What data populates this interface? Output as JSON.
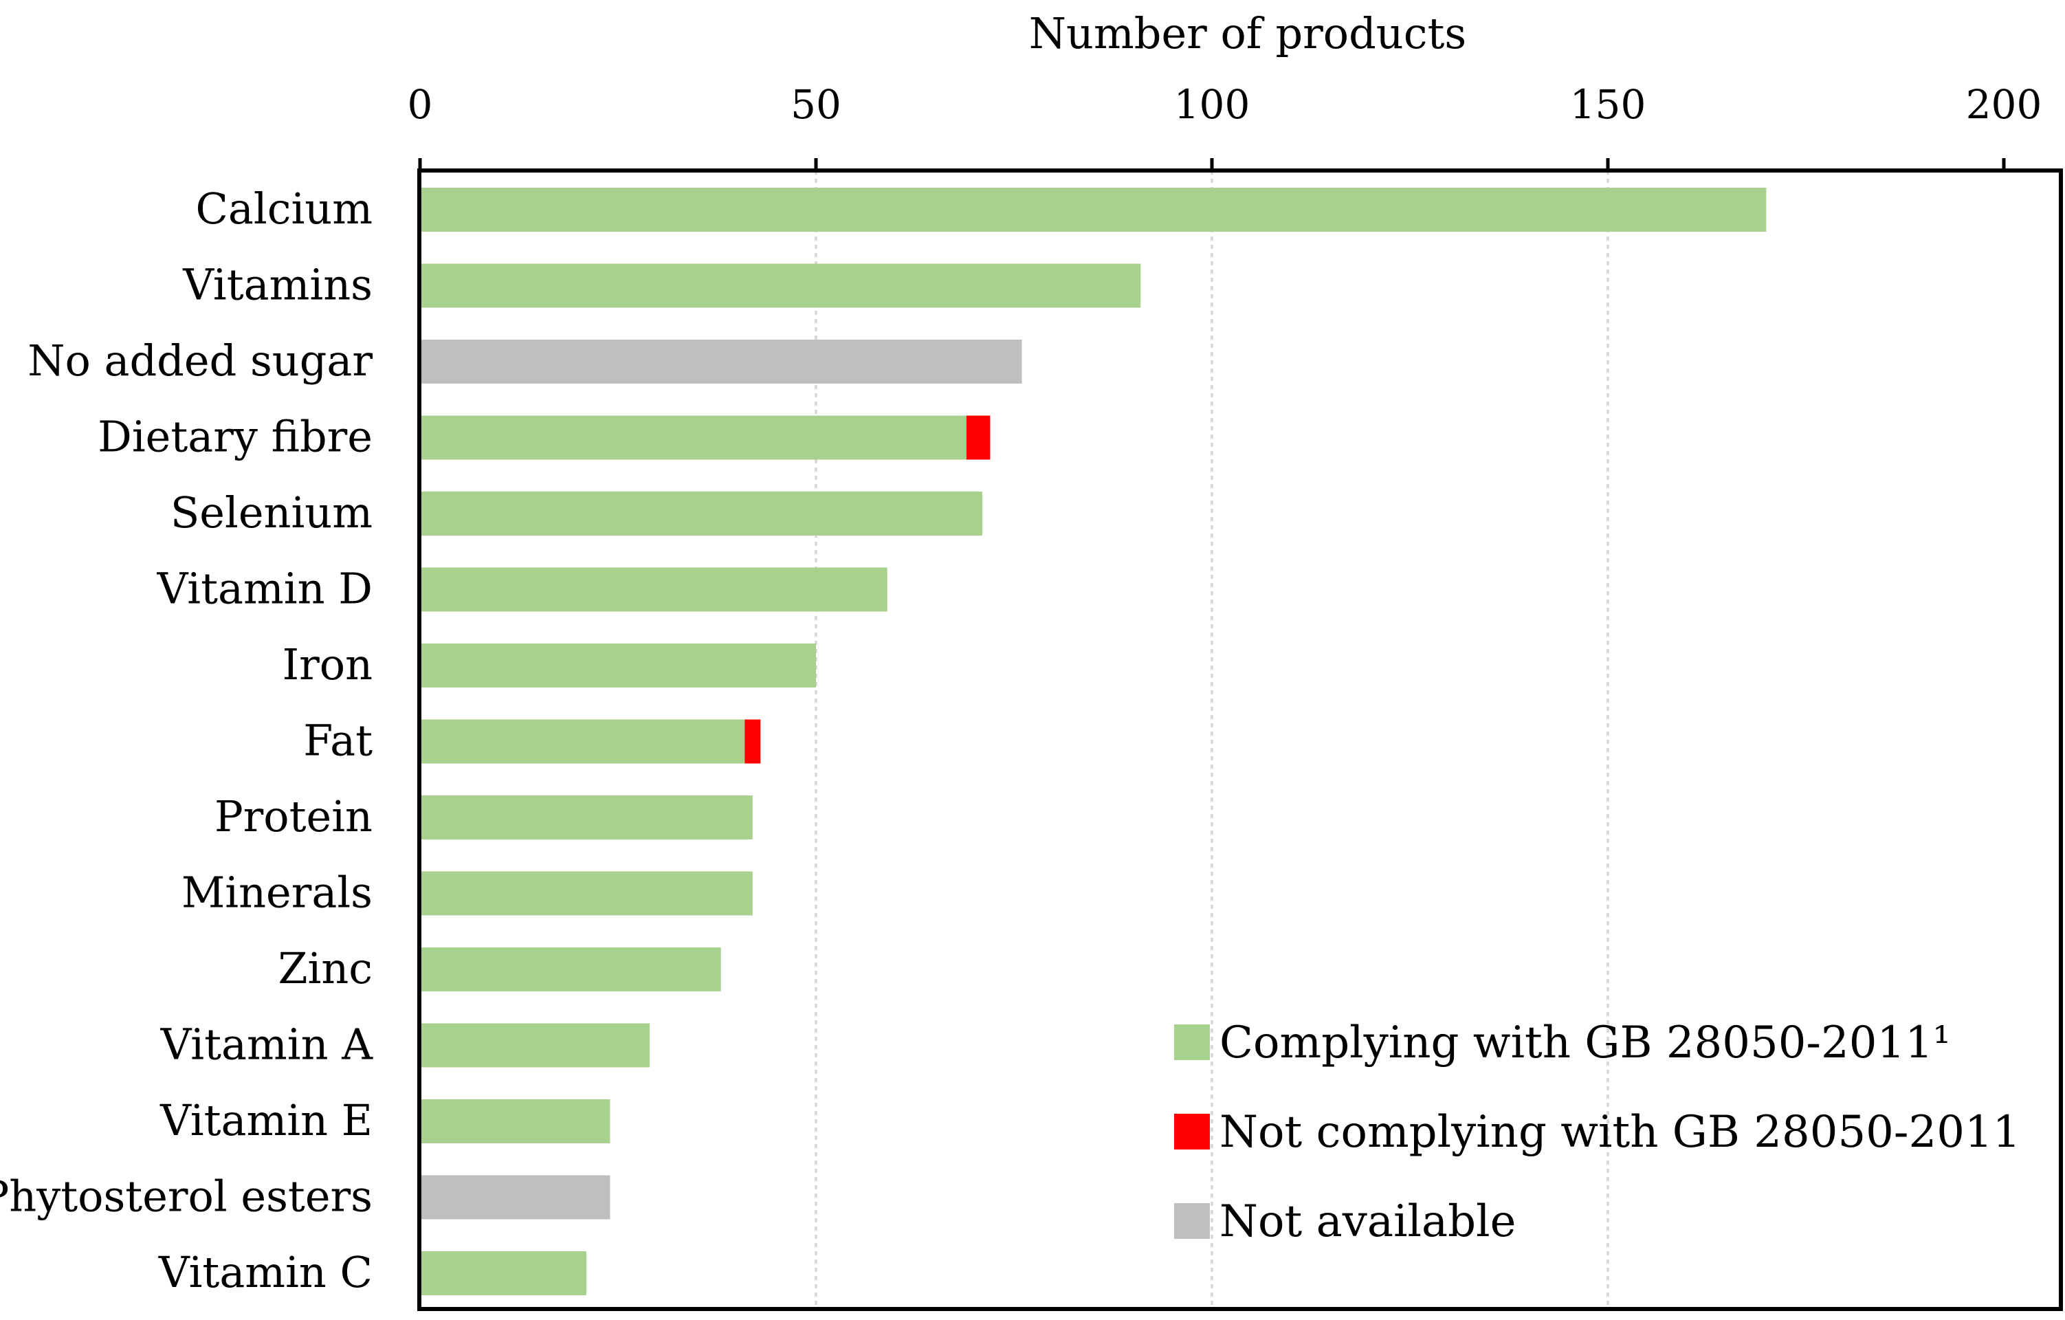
{
  "chart_data": {
    "type": "bar",
    "orientation": "horizontal",
    "stacked": true,
    "xlabel": "Number of products",
    "xlim": [
      0,
      200
    ],
    "xticks": [
      0,
      50,
      100,
      150,
      200
    ],
    "grid": "vertical dotted",
    "legend_position": "bottom-right",
    "categories": [
      "Calcium",
      "Vitamins",
      "No added sugar",
      "Dietary fibre",
      "Selenium",
      "Vitamin D",
      "Iron",
      "Fat",
      "Protein",
      "Minerals",
      "Zinc",
      "Vitamin A",
      "Vitamin E",
      "Phytosterol esters",
      "Vitamin C"
    ],
    "series": [
      {
        "name": "Complying with GB 28050-2011¹",
        "color": "#a9d18e",
        "values": [
          170,
          91,
          0,
          69,
          71,
          59,
          50,
          41,
          42,
          42,
          38,
          29,
          24,
          0,
          21
        ]
      },
      {
        "name": "Not complying with GB 28050-2011",
        "color": "#ff0000",
        "values": [
          0,
          0,
          0,
          3,
          0,
          0,
          0,
          2,
          0,
          0,
          0,
          0,
          0,
          0,
          0
        ]
      },
      {
        "name": "Not available",
        "color": "#bfbfbf",
        "values": [
          0,
          0,
          76,
          0,
          0,
          0,
          0,
          0,
          0,
          0,
          0,
          0,
          0,
          24,
          0
        ]
      }
    ]
  }
}
